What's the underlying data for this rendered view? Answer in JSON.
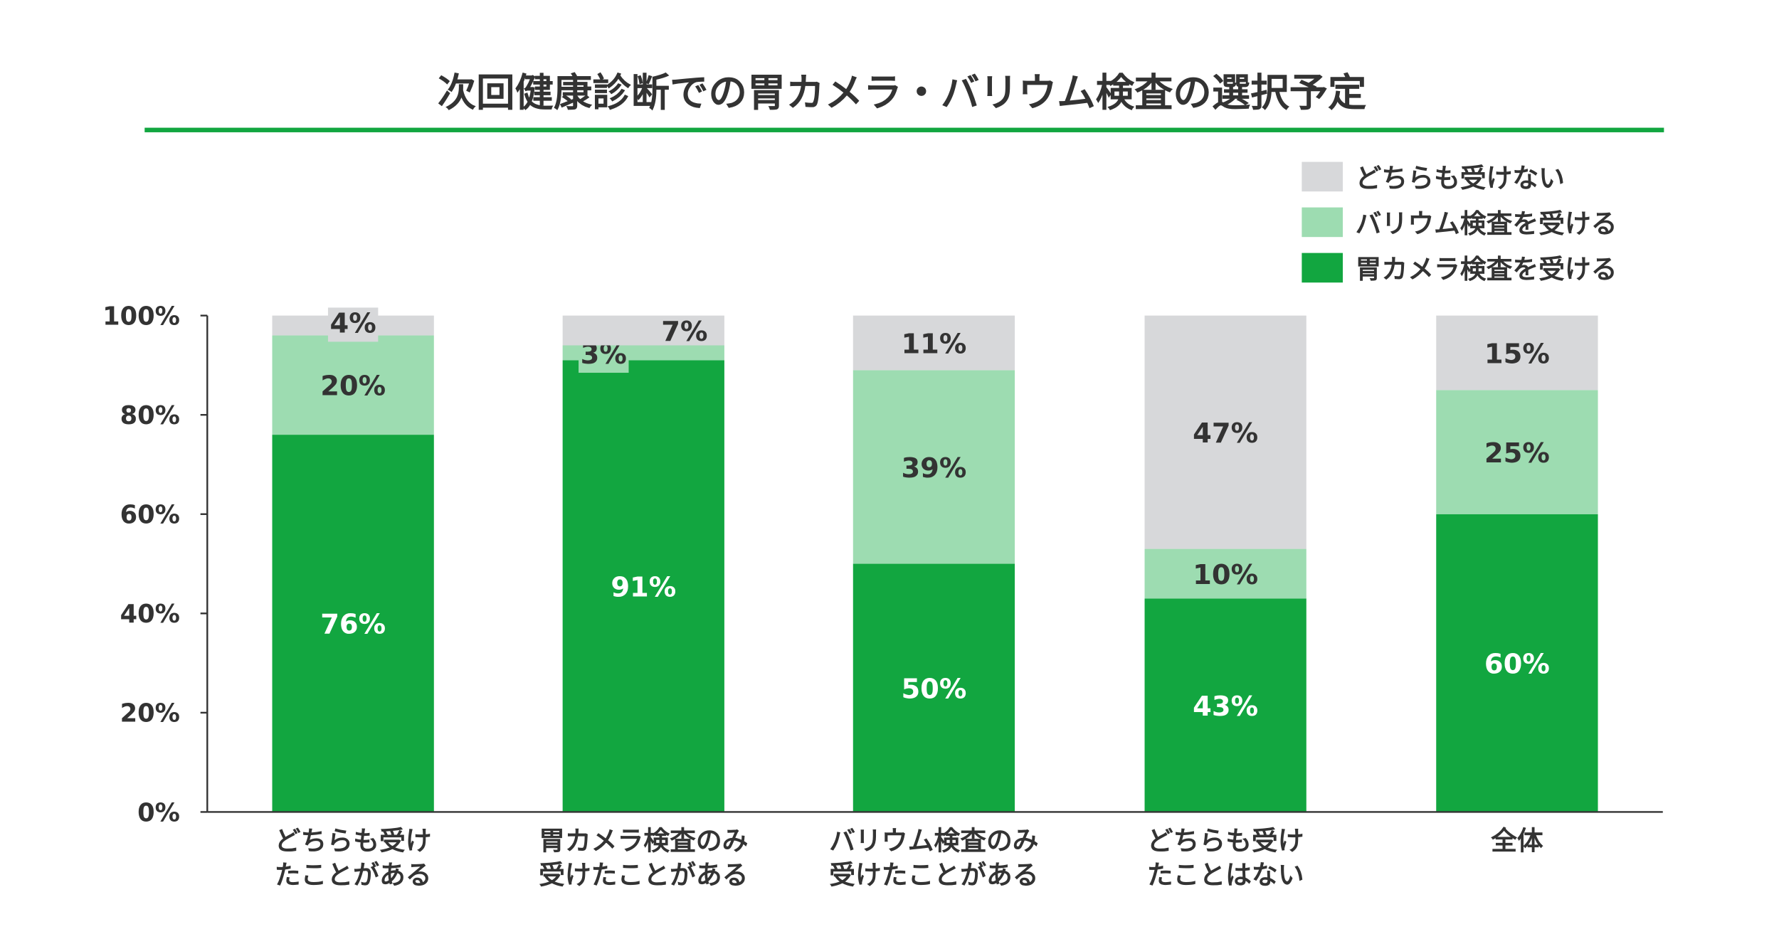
{
  "chart_data": {
    "type": "bar",
    "stacked": true,
    "title": "次回健康診断での胃カメラ・バリウム検査の選択予定",
    "xlabel": "",
    "ylabel": "",
    "ylim": [
      0,
      100
    ],
    "yticks": [
      "0%",
      "20%",
      "40%",
      "60%",
      "80%",
      "100%"
    ],
    "categories": [
      [
        "どちらも受け",
        "たことがある"
      ],
      [
        "胃カメラ検査のみ",
        "受けたことがある"
      ],
      [
        "バリウム検査のみ",
        "受けたことがある"
      ],
      [
        "どちらも受け",
        "たことはない"
      ],
      [
        "全体"
      ]
    ],
    "series": [
      {
        "name": "胃カメラ検査を受ける",
        "color": "#12a640",
        "label_color": "#ffffff",
        "values": [
          76,
          91,
          50,
          43,
          60
        ]
      },
      {
        "name": "バリウム検査を受ける",
        "color": "#9ddcb1",
        "label_color": "#333333",
        "values": [
          20,
          3,
          39,
          10,
          25
        ]
      },
      {
        "name": "どちらも受けない",
        "color": "#d7d8da",
        "label_color": "#333333",
        "values": [
          4,
          7,
          11,
          47,
          15
        ]
      }
    ],
    "legend": {
      "placement": "top-right",
      "order": [
        "どちらも受けない",
        "バリウム検査を受ける",
        "胃カメラ検査を受ける"
      ]
    },
    "grid": false,
    "accent_line_color": "#12a640"
  }
}
